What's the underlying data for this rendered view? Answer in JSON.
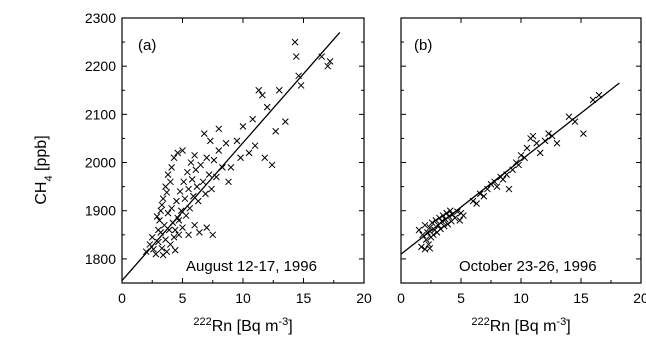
{
  "chart_data": [
    {
      "type": "scatter",
      "panel_label": "(a)",
      "annotation": "August 12-17, 1996",
      "xlabel_sup": "222",
      "xlabel_main": "Rn [Bq m",
      "xlabel_exp": "-3",
      "xlabel_close": "]",
      "ylabel_main": "CH",
      "ylabel_sub": "4",
      "ylabel_unit": " [ppb]",
      "xlim": [
        0,
        20
      ],
      "ylim": [
        1750,
        2300
      ],
      "xticks": [
        0,
        5,
        10,
        15,
        20
      ],
      "yticks": [
        1800,
        1900,
        2000,
        2100,
        2200,
        2300
      ],
      "fit_line": [
        [
          0,
          1755
        ],
        [
          18,
          2270
        ]
      ],
      "points": [
        [
          2.0,
          1815
        ],
        [
          2.3,
          1830
        ],
        [
          2.5,
          1845
        ],
        [
          2.6,
          1820
        ],
        [
          2.8,
          1810
        ],
        [
          3.0,
          1835
        ],
        [
          3.1,
          1880
        ],
        [
          3.2,
          1855
        ],
        [
          3.3,
          1822
        ],
        [
          3.4,
          1808
        ],
        [
          3.5,
          1870
        ],
        [
          3.6,
          1840
        ],
        [
          3.7,
          1815
        ],
        [
          3.8,
          1895
        ],
        [
          3.9,
          1860
        ],
        [
          4.0,
          1830
        ],
        [
          4.1,
          1905
        ],
        [
          4.2,
          1875
        ],
        [
          4.3,
          1845
        ],
        [
          4.4,
          1818
        ],
        [
          4.5,
          1920
        ],
        [
          4.6,
          1885
        ],
        [
          4.7,
          1850
        ],
        [
          4.8,
          1940
        ],
        [
          4.9,
          1900
        ],
        [
          5.0,
          1865
        ],
        [
          5.1,
          1960
        ],
        [
          5.2,
          1925
        ],
        [
          5.3,
          1890
        ],
        [
          5.4,
          1980
        ],
        [
          5.5,
          1945
        ],
        [
          5.6,
          1905
        ],
        [
          5.7,
          2000
        ],
        [
          5.8,
          1965
        ],
        [
          5.9,
          1930
        ],
        [
          6.0,
          2015
        ],
        [
          6.1,
          1985
        ],
        [
          6.2,
          1950
        ],
        [
          6.3,
          1920
        ],
        [
          6.5,
          1995
        ],
        [
          6.7,
          1960
        ],
        [
          6.9,
          1935
        ],
        [
          7.0,
          2010
        ],
        [
          7.2,
          1975
        ],
        [
          7.4,
          1945
        ],
        [
          7.6,
          2005
        ],
        [
          7.8,
          1970
        ],
        [
          8.0,
          2025
        ],
        [
          8.3,
          1990
        ],
        [
          8.6,
          2040
        ],
        [
          3.2,
          1900
        ],
        [
          3.4,
          1925
        ],
        [
          3.6,
          1950
        ],
        [
          3.8,
          1975
        ],
        [
          4.1,
          1990
        ],
        [
          4.3,
          2010
        ],
        [
          4.6,
          2020
        ],
        [
          5.0,
          2025
        ],
        [
          4.4,
          1860
        ],
        [
          4.7,
          1880
        ],
        [
          5.5,
          1850
        ],
        [
          6.0,
          1870
        ],
        [
          6.4,
          1855
        ],
        [
          7.0,
          1865
        ],
        [
          7.5,
          1850
        ],
        [
          3.0,
          1860
        ],
        [
          2.9,
          1888
        ],
        [
          3.3,
          1912
        ],
        [
          3.7,
          1938
        ],
        [
          4.0,
          1960
        ],
        [
          6.8,
          2060
        ],
        [
          7.3,
          2045
        ],
        [
          8.0,
          2070
        ],
        [
          9.5,
          2045
        ],
        [
          10.0,
          2075
        ],
        [
          10.5,
          2020
        ],
        [
          11.0,
          2035
        ],
        [
          11.3,
          2150
        ],
        [
          11.6,
          2140
        ],
        [
          12.0,
          2115
        ],
        [
          11.8,
          2010
        ],
        [
          12.4,
          1995
        ],
        [
          13.0,
          2150
        ],
        [
          13.5,
          2085
        ],
        [
          14.3,
          2250
        ],
        [
          14.4,
          2220
        ],
        [
          14.6,
          2180
        ],
        [
          14.8,
          2160
        ],
        [
          16.5,
          2220
        ],
        [
          17.0,
          2200
        ],
        [
          17.2,
          2210
        ],
        [
          9.0,
          1990
        ],
        [
          9.8,
          2010
        ],
        [
          8.8,
          1960
        ],
        [
          10.8,
          2090
        ],
        [
          12.7,
          2065
        ]
      ]
    },
    {
      "type": "scatter",
      "panel_label": "(b)",
      "annotation": "October 23-26, 1996",
      "xlabel_sup": "222",
      "xlabel_main": "Rn [Bq m",
      "xlabel_exp": "-3",
      "xlabel_close": "]",
      "xlim": [
        0,
        20
      ],
      "ylim": [
        1750,
        2300
      ],
      "xticks": [
        0,
        5,
        10,
        15,
        20
      ],
      "yticks": [
        1800,
        1900,
        2000,
        2100,
        2200,
        2300
      ],
      "fit_line": [
        [
          0,
          1810
        ],
        [
          18.2,
          2165
        ]
      ],
      "points": [
        [
          1.5,
          1860
        ],
        [
          1.7,
          1825
        ],
        [
          1.8,
          1850
        ],
        [
          2.0,
          1870
        ],
        [
          2.1,
          1840
        ],
        [
          2.2,
          1855
        ],
        [
          2.3,
          1830
        ],
        [
          2.4,
          1865
        ],
        [
          2.5,
          1845
        ],
        [
          2.6,
          1875
        ],
        [
          2.7,
          1850
        ],
        [
          2.8,
          1860
        ],
        [
          2.9,
          1880
        ],
        [
          3.0,
          1855
        ],
        [
          3.1,
          1870
        ],
        [
          3.2,
          1885
        ],
        [
          3.3,
          1862
        ],
        [
          3.4,
          1878
        ],
        [
          3.5,
          1890
        ],
        [
          3.6,
          1868
        ],
        [
          3.7,
          1882
        ],
        [
          3.8,
          1895
        ],
        [
          3.9,
          1872
        ],
        [
          4.0,
          1888
        ],
        [
          4.1,
          1900
        ],
        [
          4.2,
          1878
        ],
        [
          4.3,
          1892
        ],
        [
          4.5,
          1885
        ],
        [
          4.7,
          1898
        ],
        [
          4.9,
          1880
        ],
        [
          5.0,
          1895
        ],
        [
          5.2,
          1890
        ],
        [
          6.0,
          1920
        ],
        [
          6.3,
          1915
        ],
        [
          6.6,
          1935
        ],
        [
          6.9,
          1930
        ],
        [
          7.2,
          1945
        ],
        [
          7.5,
          1955
        ],
        [
          7.8,
          1960
        ],
        [
          8.0,
          1950
        ],
        [
          8.3,
          1970
        ],
        [
          8.5,
          1965
        ],
        [
          8.8,
          1975
        ],
        [
          9.0,
          1945
        ],
        [
          9.3,
          1985
        ],
        [
          9.6,
          2000
        ],
        [
          9.8,
          1995
        ],
        [
          10.0,
          2015
        ],
        [
          10.3,
          2010
        ],
        [
          10.5,
          2030
        ],
        [
          10.8,
          2050
        ],
        [
          11.0,
          2055
        ],
        [
          11.3,
          2040
        ],
        [
          11.6,
          2020
        ],
        [
          12.0,
          2045
        ],
        [
          12.3,
          2060
        ],
        [
          12.6,
          2055
        ],
        [
          13.0,
          2040
        ],
        [
          14.0,
          2095
        ],
        [
          14.5,
          2085
        ],
        [
          15.2,
          2060
        ],
        [
          16.0,
          2130
        ],
        [
          16.5,
          2140
        ],
        [
          2.0,
          1820
        ],
        [
          2.4,
          1822
        ]
      ]
    }
  ]
}
